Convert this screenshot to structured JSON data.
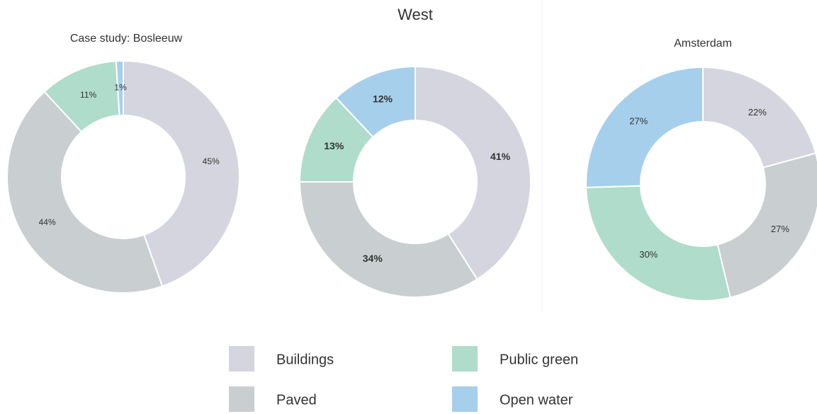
{
  "chart_data": [
    {
      "type": "donut",
      "title": "Case study: Bosleeuw",
      "categories": [
        "Buildings",
        "Paved",
        "Public green",
        "Open water"
      ],
      "values": [
        45,
        44,
        11,
        1
      ],
      "value_labels": [
        "45%",
        "44%",
        "11%",
        "1%"
      ],
      "colors": [
        "#d5d5e0",
        "#c9cfd0",
        "#b0dccb",
        "#a6cfec"
      ]
    },
    {
      "type": "donut",
      "title": "West",
      "categories": [
        "Buildings",
        "Paved",
        "Public green",
        "Open water"
      ],
      "values": [
        41,
        34,
        13,
        12
      ],
      "value_labels": [
        "41%",
        "34%",
        "13%",
        "12%"
      ],
      "colors": [
        "#d5d5e0",
        "#c9cfd0",
        "#b0dccb",
        "#a6cfec"
      ]
    },
    {
      "type": "donut",
      "title": "Amsterdam",
      "categories": [
        "Buildings",
        "Paved",
        "Public green",
        "Open water"
      ],
      "values": [
        22,
        27,
        30,
        27
      ],
      "value_labels": [
        "22%",
        "27%",
        "30%",
        "27%"
      ],
      "colors": [
        "#d5d5e0",
        "#c9cfd0",
        "#b0dccb",
        "#a6cfec"
      ]
    }
  ]
}
